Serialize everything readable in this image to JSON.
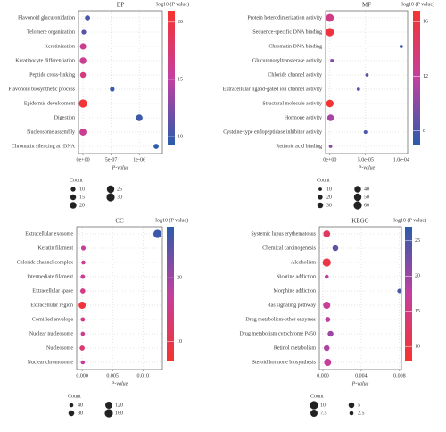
{
  "chart_data": [
    {
      "type": "bubble",
      "title": "BP",
      "categories": [
        "Flavonoid glucuronidation",
        "Telomere organization",
        "Keratinization",
        "Keratinocyte differentiation",
        "Peptide cross-linking",
        "Flavonoid biosynthetic process",
        "Epidermis development",
        "Digestion",
        "Nucleosome assembly",
        "Chromatin silencing at rDNA"
      ],
      "values": [
        8e-08,
        1.5e-08,
        1e-09,
        1e-09,
        1e-09,
        5.2e-07,
        1e-20,
        1e-06,
        1e-12,
        1.3e-06
      ],
      "sizes": [
        12,
        10,
        18,
        20,
        15,
        10,
        30,
        20,
        22,
        12
      ],
      "color_values": [
        10.5,
        11,
        16,
        16,
        17,
        10,
        20.5,
        10,
        16,
        9.5
      ],
      "x_label": "P-value",
      "xlim": [
        -8e-08,
        1.41e-06
      ],
      "xticks": [
        {
          "value": 0,
          "label": "0e+00"
        },
        {
          "value": 5e-07,
          "label": "5e-07"
        },
        {
          "value": 1e-06,
          "label": "1e-06"
        }
      ],
      "colorbar_title": "−log10 (P value)",
      "colorbar_lim": [
        9.3,
        21
      ],
      "colorbar_ticks": [
        10,
        15,
        20
      ],
      "colorscale": [
        "#2b5cab",
        "#c43fa0",
        "#f5332e"
      ],
      "size_legend_title": "Count",
      "size_legend": [
        10,
        15,
        20,
        25,
        30
      ],
      "grid": true
    },
    {
      "type": "bubble",
      "title": "MF",
      "categories": [
        "Protein heterodimerization activity",
        "Sequence-specific DNA binding",
        "Chromatin DNA binding",
        "Glucuronosyltransferase activity",
        "Chloride channel activity",
        "Extracellular ligand-gated ion channel activity",
        "Structural molecule activity",
        "Hormone activity",
        "Cysteine-type endopeptidase inhibitor activity",
        "Retinoic acid binding"
      ],
      "values": [
        1e-09,
        1e-10,
        0.0001,
        3e-06,
        5.2e-05,
        4e-05,
        1e-10,
        1e-06,
        5e-05,
        1e-06
      ],
      "sizes": [
        55,
        60,
        10,
        12,
        10,
        10,
        50,
        40,
        12,
        10
      ],
      "color_values": [
        13,
        16,
        7.5,
        10,
        8.5,
        8.5,
        16.5,
        11,
        8,
        10
      ],
      "x_label": "P-value",
      "xlim": [
        -6e-06,
        0.000109
      ],
      "xticks": [
        {
          "value": 0,
          "label": "0e+00"
        },
        {
          "value": 5e-05,
          "label": "5.0e-05"
        },
        {
          "value": 0.0001,
          "label": "1.0e-04"
        }
      ],
      "colorbar_title": "−log10 (P value)",
      "colorbar_lim": [
        7,
        16.8
      ],
      "colorbar_ticks": [
        8,
        12,
        16
      ],
      "colorscale": [
        "#2b5cab",
        "#c43fa0",
        "#f5332e"
      ],
      "size_legend_title": "Count",
      "size_legend": [
        10,
        20,
        30,
        40,
        50,
        60
      ],
      "grid": true
    },
    {
      "type": "bubble",
      "title": "CC",
      "categories": [
        "Extracellular exosome",
        "Keratin filament",
        "Chloride channel complex",
        "Intermediate filament",
        "Extracellular space",
        "Extracellular region",
        "Cornified envelope",
        "Nuclear nucleosome",
        "Nucleosome",
        "Nuclear chromosome"
      ],
      "values": [
        0.0124,
        0.0002,
        0.0002,
        0.0001,
        0.0001,
        0,
        0.0001,
        0.0001,
        0,
        0.0001
      ],
      "sizes": [
        160,
        50,
        40,
        45,
        60,
        120,
        45,
        40,
        60,
        40
      ],
      "color_values": [
        27,
        17,
        16,
        16,
        15,
        8,
        15,
        16,
        13,
        17
      ],
      "x_label": "P-value",
      "xlim": [
        -0.0009,
        0.0132
      ],
      "xticks": [
        {
          "value": 0,
          "label": "0.000"
        },
        {
          "value": 0.005,
          "label": "0.005"
        },
        {
          "value": 0.01,
          "label": "0.010"
        }
      ],
      "colorbar_title": "−log10 (P value)",
      "colorbar_lim": [
        7,
        28
      ],
      "colorbar_ticks": [
        10,
        20
      ],
      "colorscale": [
        "#f5332e",
        "#c43fa0",
        "#2b5cab"
      ],
      "size_legend_title": "Count",
      "size_legend": [
        40,
        80,
        120,
        160
      ],
      "grid": true
    },
    {
      "type": "bubble",
      "title": "KEGG",
      "categories": [
        "Systemic lupus erythematosus",
        "Chemical carcinogenesis",
        "Alcoholism",
        "Nicotine addiction",
        "Morphine addiction",
        "Ras signaling pathway",
        "Drug metabolism-other enzymes",
        "Drug metabolism cytochrome P450",
        "Retinol metabolism",
        "Steroid hormone biosynthesis"
      ],
      "values": [
        0.0004,
        0.0013,
        0.0004,
        0.0004,
        0.008,
        0.0004,
        0.0005,
        0.0008,
        0.0004,
        0.0005
      ],
      "sizes": [
        7,
        5,
        10,
        2.5,
        3,
        7.5,
        4,
        5,
        5,
        7.5
      ],
      "color_values": [
        12,
        24,
        10,
        18,
        25,
        17,
        18,
        20,
        19,
        17
      ],
      "x_label": "P-value",
      "xlim": [
        -0.00037,
        0.0082
      ],
      "xticks": [
        {
          "value": 0,
          "label": "0.000"
        },
        {
          "value": 0.004,
          "label": "0.004"
        },
        {
          "value": 0.008,
          "label": "0.008"
        }
      ],
      "colorbar_title": "−log10 (P value)",
      "colorbar_lim": [
        8,
        27
      ],
      "colorbar_ticks": [
        10,
        15,
        20,
        25
      ],
      "colorscale": [
        "#f5332e",
        "#c43fa0",
        "#2b5cab"
      ],
      "size_legend_title": "Count",
      "size_legend": [
        10,
        7.5,
        5,
        2.5
      ],
      "grid": true
    }
  ]
}
